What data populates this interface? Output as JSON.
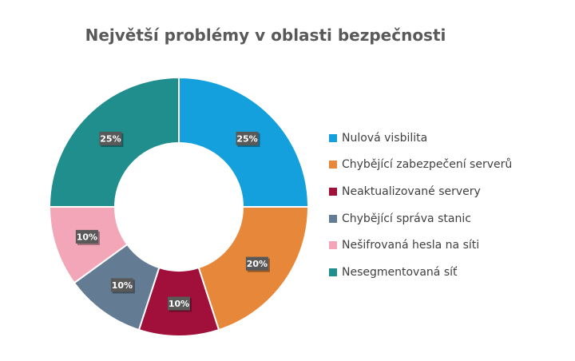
{
  "chart_data": {
    "type": "pie",
    "title": "Největší problémy v oblasti bezpečnosti",
    "categories": [
      "Nulová visbilita",
      "Chybějící zabezpečení serverů",
      "Neaktualizované servery",
      "Chybějící správa stanic",
      "Nešifrovaná hesla na síti",
      "Nesegmentovaná síť"
    ],
    "values": [
      25,
      20,
      10,
      10,
      10,
      25
    ],
    "data_labels": [
      "25%",
      "20%",
      "10%",
      "10%",
      "10%",
      "25%"
    ],
    "colors": [
      "#14a0dc",
      "#e7873a",
      "#a0103a",
      "#637b93",
      "#f3a6b8",
      "#1f8e8c"
    ],
    "donut": true,
    "legend_position": "right"
  }
}
